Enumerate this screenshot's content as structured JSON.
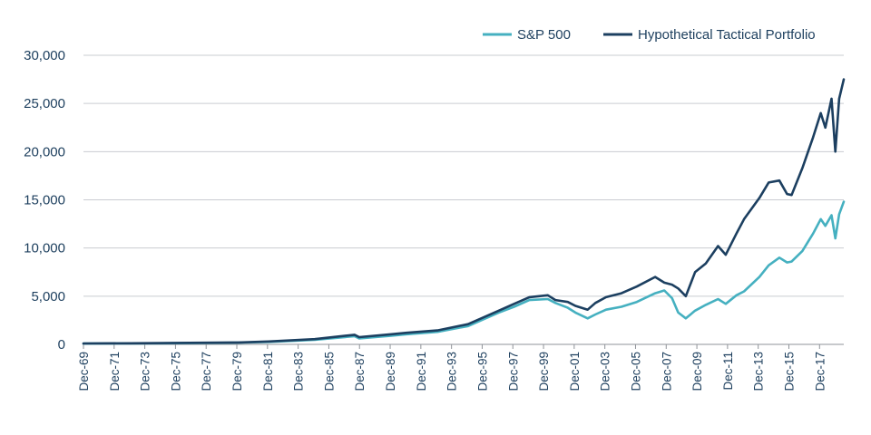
{
  "chart_data": {
    "type": "line",
    "title": "",
    "xlabel": "",
    "ylabel": "",
    "ylim": [
      0,
      30000
    ],
    "yticks": [
      0,
      5000,
      10000,
      15000,
      20000,
      25000,
      30000
    ],
    "ytick_labels": [
      "0",
      "5,000",
      "10,000",
      "15,000",
      "20,000",
      "25,000",
      "30,000"
    ],
    "xlim": [
      1969.92,
      2019.5
    ],
    "xticks": [
      1969.92,
      1971.92,
      1973.92,
      1975.92,
      1977.92,
      1979.92,
      1981.92,
      1983.92,
      1985.92,
      1987.92,
      1989.92,
      1991.92,
      1993.92,
      1995.92,
      1997.92,
      1999.92,
      2001.92,
      2003.92,
      2005.92,
      2007.92,
      2009.92,
      2011.92,
      2013.92,
      2015.92,
      2017.92
    ],
    "xtick_labels": [
      "Dec-69",
      "Dec-71",
      "Dec-73",
      "Dec-75",
      "Dec-77",
      "Dec-79",
      "Dec-81",
      "Dec-83",
      "Dec-85",
      "Dec-87",
      "Dec-89",
      "Dec-91",
      "Dec-93",
      "Dec-95",
      "Dec-97",
      "Dec-99",
      "Dec-01",
      "Dec-03",
      "Dec-05",
      "Dec-07",
      "Dec-09",
      "Dec-11",
      "Dec-13",
      "Dec-15",
      "Dec-17"
    ],
    "grid": true,
    "legend_position": "top-right",
    "series": [
      {
        "name": "S&P 500",
        "color": "#45b0c0",
        "x": [
          1969.92,
          1973,
          1975,
          1980,
          1982,
          1985,
          1987.6,
          1987.9,
          1990,
          1991,
          1993,
          1995,
          1997,
          1998,
          1999,
          2000.2,
          2000.7,
          2001.5,
          2002.0,
          2002.8,
          2003.3,
          2004,
          2005,
          2006,
          2007.2,
          2007.8,
          2008.3,
          2008.7,
          2009.2,
          2009.8,
          2010.5,
          2011.3,
          2011.8,
          2012.5,
          2013,
          2014,
          2014.6,
          2015.3,
          2015.8,
          2016.1,
          2016.8,
          2017.5,
          2018.0,
          2018.3,
          2018.7,
          2018.95,
          2019.2,
          2019.5
        ],
        "y": [
          80,
          100,
          110,
          180,
          250,
          480,
          850,
          620,
          900,
          1050,
          1300,
          1900,
          3300,
          3900,
          4600,
          4700,
          4300,
          3800,
          3300,
          2700,
          3100,
          3600,
          3900,
          4400,
          5300,
          5600,
          4800,
          3300,
          2700,
          3500,
          4100,
          4700,
          4200,
          5100,
          5500,
          7000,
          8200,
          9000,
          8500,
          8600,
          9700,
          11500,
          13000,
          12300,
          13400,
          11000,
          13500,
          14800
        ]
      },
      {
        "name": "Hypothetical Tactical Portfolio",
        "color": "#1c3f60",
        "x": [
          1969.92,
          1973,
          1975,
          1980,
          1982,
          1985,
          1987.6,
          1987.9,
          1990,
          1991,
          1993,
          1995,
          1997,
          1998,
          1999,
          2000.2,
          2000.7,
          2001.5,
          2002.0,
          2002.8,
          2003.3,
          2004,
          2005,
          2006,
          2007.2,
          2007.8,
          2008.3,
          2008.7,
          2009.2,
          2009.8,
          2010.5,
          2011.3,
          2011.8,
          2012.5,
          2013,
          2014,
          2014.6,
          2015.3,
          2015.8,
          2016.1,
          2016.8,
          2017.5,
          2018.0,
          2018.3,
          2018.7,
          2018.95,
          2019.2,
          2019.5
        ],
        "y": [
          90,
          110,
          130,
          200,
          300,
          550,
          1000,
          750,
          1050,
          1200,
          1450,
          2100,
          3500,
          4200,
          4900,
          5100,
          4600,
          4400,
          4000,
          3600,
          4300,
          4900,
          5300,
          6000,
          7000,
          6400,
          6200,
          5800,
          5000,
          7500,
          8400,
          10200,
          9300,
          11500,
          13000,
          15200,
          16800,
          17000,
          15600,
          15500,
          18300,
          21500,
          24000,
          22500,
          25500,
          20000,
          25500,
          27500
        ]
      }
    ]
  }
}
